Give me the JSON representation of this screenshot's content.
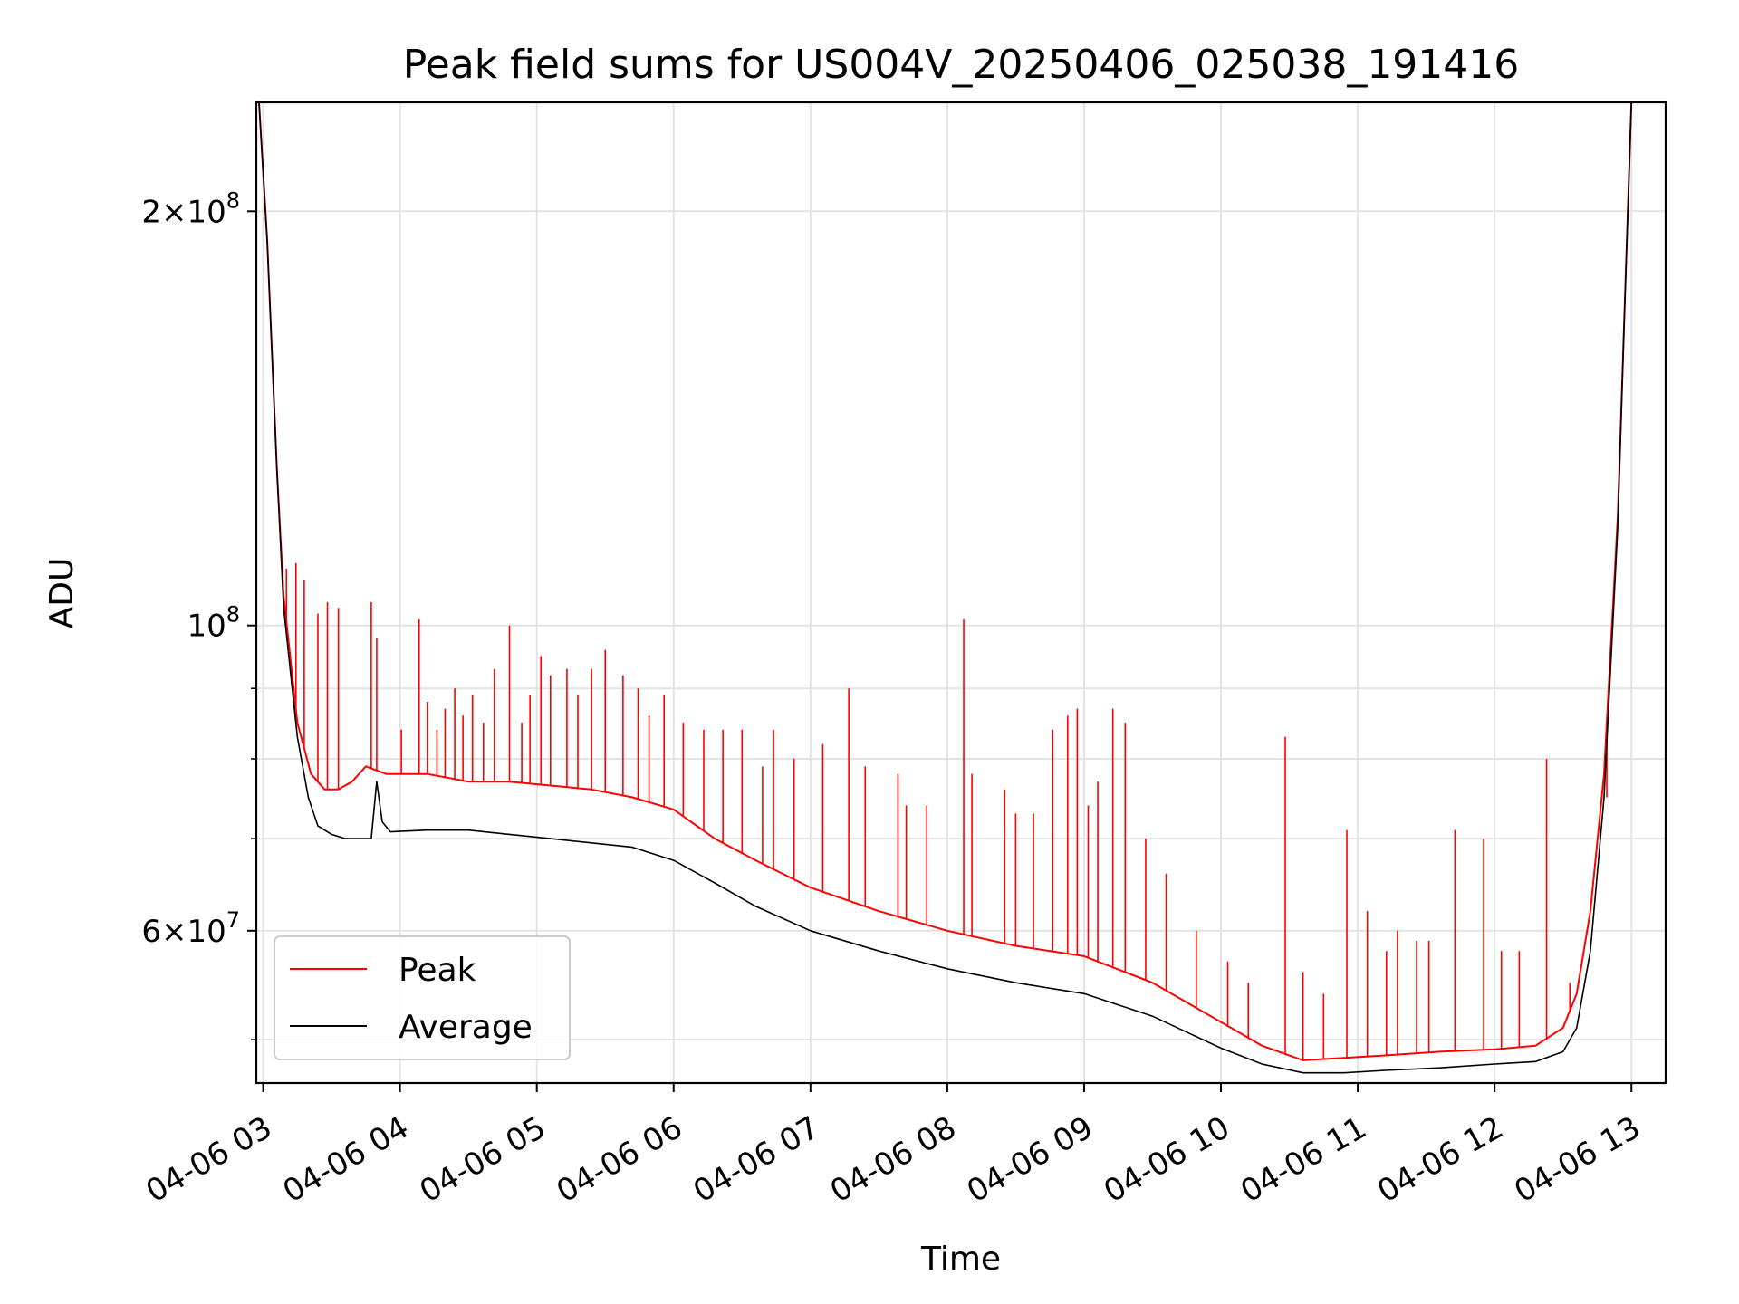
{
  "chart_data": {
    "type": "line",
    "title": "Peak field sums for US004V_20250406_025038_191416",
    "xlabel": "Time",
    "ylabel": "ADU",
    "yscale": "log",
    "grid": true,
    "legend_position": "lower-left",
    "xlim_hours": [
      2.95,
      13.25
    ],
    "ylim": [
      46500000,
      240000000
    ],
    "x_ticks": [
      {
        "hour": 3,
        "label": "04-06 03"
      },
      {
        "hour": 4,
        "label": "04-06 04"
      },
      {
        "hour": 5,
        "label": "04-06 05"
      },
      {
        "hour": 6,
        "label": "04-06 06"
      },
      {
        "hour": 7,
        "label": "04-06 07"
      },
      {
        "hour": 8,
        "label": "04-06 08"
      },
      {
        "hour": 9,
        "label": "04-06 09"
      },
      {
        "hour": 10,
        "label": "04-06 10"
      },
      {
        "hour": 11,
        "label": "04-06 11"
      },
      {
        "hour": 12,
        "label": "04-06 12"
      },
      {
        "hour": 13,
        "label": "04-06 13"
      }
    ],
    "y_major_ticks": [
      {
        "value": 200000000,
        "base": "2",
        "sup": "8"
      },
      {
        "value": 100000000,
        "base": "",
        "sup": "8"
      },
      {
        "value": 60000000,
        "base": "6",
        "sup": "7"
      }
    ],
    "y_major_mantissa_sep": "×10",
    "y_major_plain_base": "10",
    "y_minor_ticks": [
      50000000,
      70000000,
      80000000,
      90000000
    ],
    "series": [
      {
        "name": "Peak",
        "color": "#ff0000",
        "points": [
          [
            2.97,
            240000000
          ],
          [
            3.03,
            190000000
          ],
          [
            3.1,
            130000000
          ],
          [
            3.15,
            105000000
          ],
          [
            3.25,
            85000000
          ],
          [
            3.35,
            78000000
          ],
          [
            3.45,
            76000000
          ],
          [
            3.55,
            76000000
          ],
          [
            3.65,
            77000000
          ],
          [
            3.75,
            79000000
          ],
          [
            3.9,
            78000000
          ],
          [
            4.2,
            78000000
          ],
          [
            4.5,
            77000000
          ],
          [
            4.8,
            77000000
          ],
          [
            5.1,
            76500000
          ],
          [
            5.4,
            76000000
          ],
          [
            5.7,
            75000000
          ],
          [
            6.0,
            73500000
          ],
          [
            6.3,
            70000000
          ],
          [
            6.6,
            67500000
          ],
          [
            7.0,
            64500000
          ],
          [
            7.5,
            62000000
          ],
          [
            8.0,
            60000000
          ],
          [
            8.5,
            58500000
          ],
          [
            9.0,
            57500000
          ],
          [
            9.5,
            55000000
          ],
          [
            10.0,
            51500000
          ],
          [
            10.3,
            49500000
          ],
          [
            10.6,
            48300000
          ],
          [
            10.9,
            48500000
          ],
          [
            11.2,
            48700000
          ],
          [
            11.6,
            49000000
          ],
          [
            12.0,
            49200000
          ],
          [
            12.3,
            49500000
          ],
          [
            12.5,
            51000000
          ],
          [
            12.6,
            54000000
          ],
          [
            12.7,
            62000000
          ],
          [
            12.8,
            78000000
          ],
          [
            12.9,
            120000000
          ],
          [
            12.95,
            170000000
          ],
          [
            13.0,
            240000000
          ]
        ],
        "spikes": [
          [
            3.17,
            110000000
          ],
          [
            3.24,
            111000000
          ],
          [
            3.3,
            108000000
          ],
          [
            3.4,
            102000000
          ],
          [
            3.47,
            104000000
          ],
          [
            3.55,
            103000000
          ],
          [
            3.79,
            104000000
          ],
          [
            3.83,
            98000000
          ],
          [
            4.01,
            84000000
          ],
          [
            4.14,
            101000000
          ],
          [
            4.2,
            88000000
          ],
          [
            4.27,
            84000000
          ],
          [
            4.33,
            87000000
          ],
          [
            4.4,
            90000000
          ],
          [
            4.46,
            86000000
          ],
          [
            4.53,
            89000000
          ],
          [
            4.61,
            85000000
          ],
          [
            4.69,
            93000000
          ],
          [
            4.8,
            100000000
          ],
          [
            4.89,
            85000000
          ],
          [
            4.95,
            89000000
          ],
          [
            5.03,
            95000000
          ],
          [
            5.1,
            92000000
          ],
          [
            5.22,
            93000000
          ],
          [
            5.3,
            89000000
          ],
          [
            5.4,
            93000000
          ],
          [
            5.5,
            96000000
          ],
          [
            5.63,
            92000000
          ],
          [
            5.74,
            90000000
          ],
          [
            5.82,
            86000000
          ],
          [
            5.93,
            89000000
          ],
          [
            6.07,
            85000000
          ],
          [
            6.22,
            84000000
          ],
          [
            6.36,
            84000000
          ],
          [
            6.5,
            84000000
          ],
          [
            6.65,
            79000000
          ],
          [
            6.73,
            84000000
          ],
          [
            6.88,
            80000000
          ],
          [
            7.09,
            82000000
          ],
          [
            7.28,
            90000000
          ],
          [
            7.4,
            79000000
          ],
          [
            7.64,
            78000000
          ],
          [
            7.7,
            74000000
          ],
          [
            7.85,
            74000000
          ],
          [
            8.12,
            101000000
          ],
          [
            8.18,
            78000000
          ],
          [
            8.42,
            76000000
          ],
          [
            8.5,
            73000000
          ],
          [
            8.63,
            73000000
          ],
          [
            8.77,
            84000000
          ],
          [
            8.88,
            86000000
          ],
          [
            8.95,
            87000000
          ],
          [
            9.03,
            74000000
          ],
          [
            9.1,
            77000000
          ],
          [
            9.21,
            87000000
          ],
          [
            9.3,
            85000000
          ],
          [
            9.45,
            70000000
          ],
          [
            9.6,
            66000000
          ],
          [
            9.82,
            60000000
          ],
          [
            10.05,
            57000000
          ],
          [
            10.2,
            55000000
          ],
          [
            10.47,
            83000000
          ],
          [
            10.6,
            56000000
          ],
          [
            10.75,
            54000000
          ],
          [
            10.92,
            71000000
          ],
          [
            11.07,
            62000000
          ],
          [
            11.21,
            58000000
          ],
          [
            11.29,
            60000000
          ],
          [
            11.43,
            59000000
          ],
          [
            11.52,
            59000000
          ],
          [
            11.71,
            71000000
          ],
          [
            11.92,
            70000000
          ],
          [
            12.05,
            58000000
          ],
          [
            12.18,
            58000000
          ],
          [
            12.38,
            80000000
          ],
          [
            12.55,
            55000000
          ],
          [
            12.64,
            57000000
          ],
          [
            12.71,
            63000000
          ],
          [
            12.82,
            75000000
          ]
        ]
      },
      {
        "name": "Average",
        "color": "#000000",
        "points": [
          [
            2.97,
            240000000
          ],
          [
            3.03,
            190000000
          ],
          [
            3.1,
            130000000
          ],
          [
            3.15,
            103000000
          ],
          [
            3.25,
            83000000
          ],
          [
            3.33,
            75000000
          ],
          [
            3.4,
            71500000
          ],
          [
            3.5,
            70500000
          ],
          [
            3.6,
            70000000
          ],
          [
            3.7,
            70000000
          ],
          [
            3.79,
            70000000
          ],
          [
            3.83,
            77000000
          ],
          [
            3.87,
            72000000
          ],
          [
            3.93,
            70800000
          ],
          [
            4.2,
            71000000
          ],
          [
            4.5,
            71000000
          ],
          [
            4.8,
            70500000
          ],
          [
            5.1,
            70000000
          ],
          [
            5.4,
            69500000
          ],
          [
            5.7,
            69000000
          ],
          [
            6.0,
            67500000
          ],
          [
            6.3,
            65000000
          ],
          [
            6.6,
            62500000
          ],
          [
            7.0,
            60000000
          ],
          [
            7.5,
            58000000
          ],
          [
            8.0,
            56300000
          ],
          [
            8.5,
            55000000
          ],
          [
            9.0,
            54000000
          ],
          [
            9.5,
            52000000
          ],
          [
            10.0,
            49300000
          ],
          [
            10.3,
            48000000
          ],
          [
            10.6,
            47300000
          ],
          [
            10.9,
            47300000
          ],
          [
            11.2,
            47500000
          ],
          [
            11.6,
            47700000
          ],
          [
            12.0,
            48000000
          ],
          [
            12.3,
            48200000
          ],
          [
            12.5,
            49000000
          ],
          [
            12.6,
            51000000
          ],
          [
            12.7,
            58000000
          ],
          [
            12.8,
            75000000
          ],
          [
            12.9,
            118000000
          ],
          [
            12.95,
            170000000
          ],
          [
            13.0,
            240000000
          ]
        ]
      }
    ]
  }
}
